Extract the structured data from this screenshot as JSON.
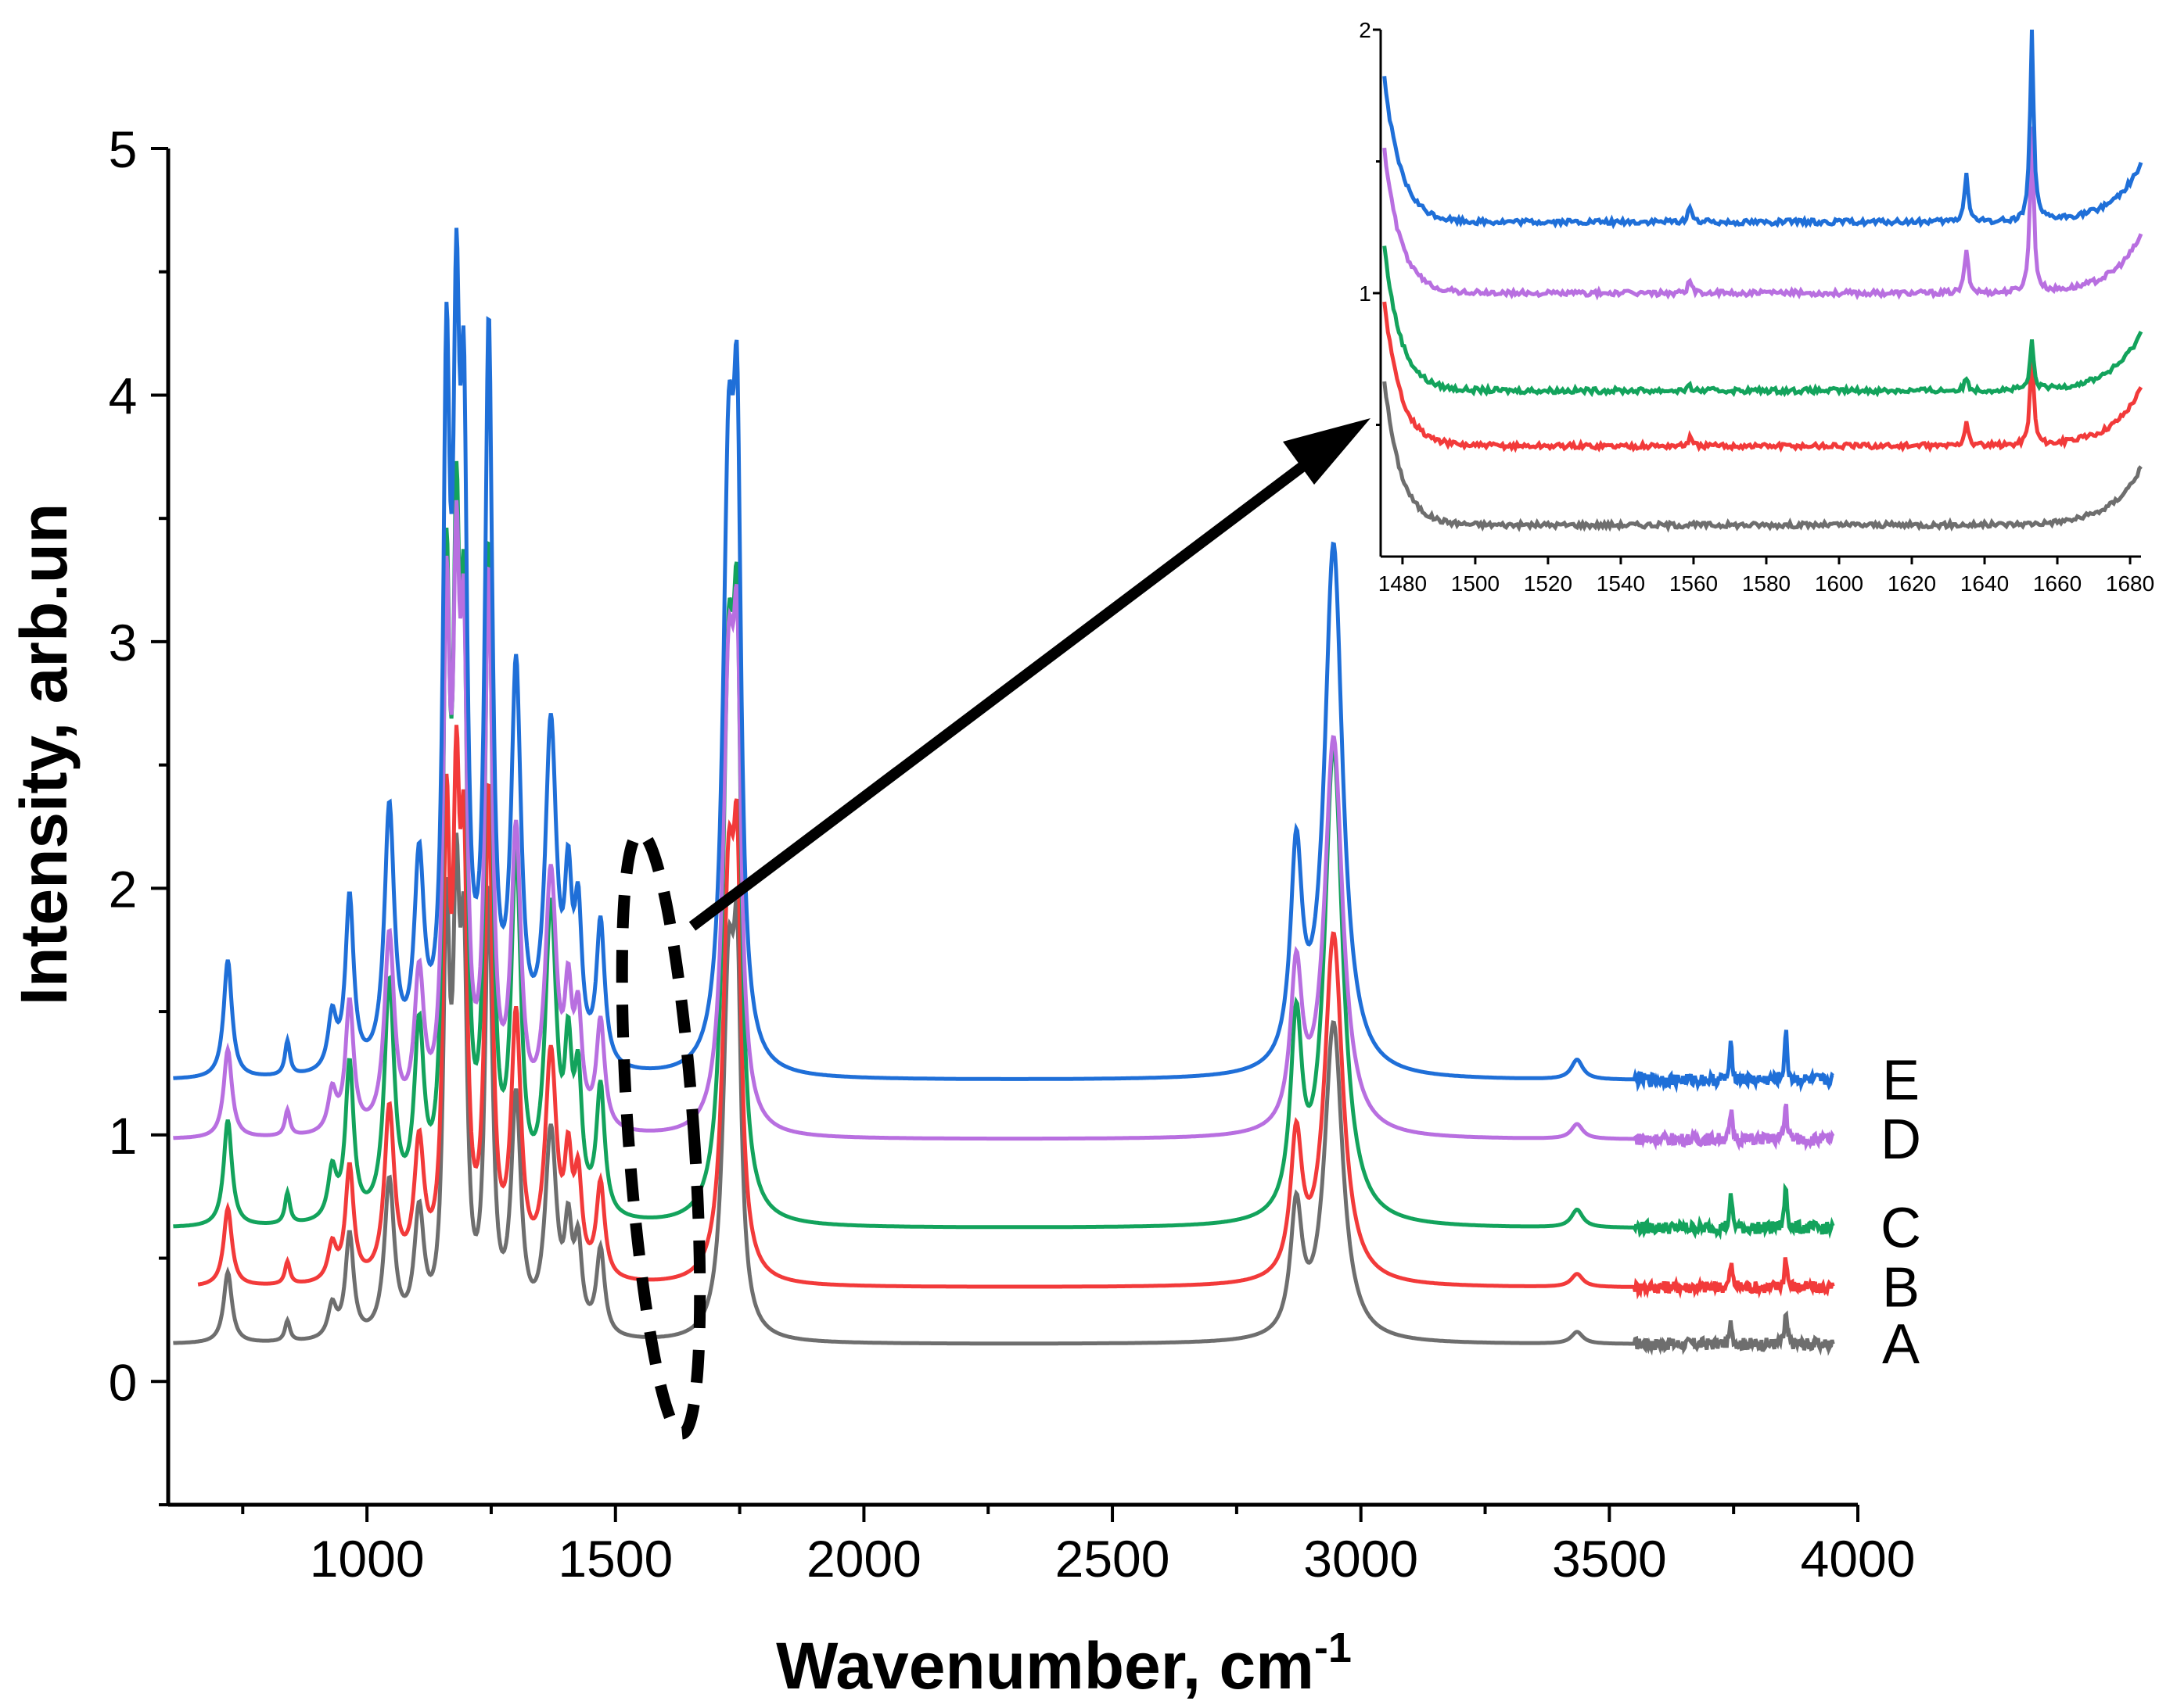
{
  "chart_data": [
    {
      "type": "line",
      "id": "main",
      "title": "",
      "xlabel": "Wavenumber, cm",
      "xlabel_superscript": "-1",
      "ylabel": "Intensity, arb.un",
      "xlim": [
        600,
        4000
      ],
      "ylim": [
        -0.5,
        5
      ],
      "xticks": [
        1000,
        1500,
        2000,
        2500,
        3000,
        3500,
        4000
      ],
      "xtick_labels": [
        "1000",
        "1500",
        "2000",
        "2500",
        "3000",
        "3500",
        "4000"
      ],
      "yticks": [
        0,
        1,
        2,
        3,
        4,
        5
      ],
      "ytick_labels": [
        "0",
        "1",
        "2",
        "3",
        "4",
        "5"
      ],
      "series": [
        {
          "name": "A",
          "color": "#6e6e6e",
          "offset": 0.15,
          "scale": 0.6
        },
        {
          "name": "B",
          "color": "#f23a3a",
          "offset": 0.38,
          "scale": 0.66
        },
        {
          "name": "C",
          "color": "#13a35c",
          "offset": 0.62,
          "scale": 0.9
        },
        {
          "name": "D",
          "color": "#b86fe0",
          "offset": 0.98,
          "scale": 0.75
        },
        {
          "name": "E",
          "color": "#1f6fd8",
          "offset": 1.22,
          "scale": 1.0
        }
      ],
      "peaks": [
        {
          "x": 720,
          "h": 0.48,
          "w": 10
        },
        {
          "x": 840,
          "h": 0.14,
          "w": 6
        },
        {
          "x": 930,
          "h": 0.22,
          "w": 10
        },
        {
          "x": 965,
          "h": 0.7,
          "w": 10
        },
        {
          "x": 1045,
          "h": 1.05,
          "w": 12
        },
        {
          "x": 1105,
          "h": 0.8,
          "w": 12
        },
        {
          "x": 1160,
          "h": 2.6,
          "w": 8
        },
        {
          "x": 1180,
          "h": 2.5,
          "w": 8
        },
        {
          "x": 1195,
          "h": 2.2,
          "w": 8
        },
        {
          "x": 1245,
          "h": 2.9,
          "w": 9
        },
        {
          "x": 1300,
          "h": 1.55,
          "w": 12
        },
        {
          "x": 1370,
          "h": 1.35,
          "w": 14
        },
        {
          "x": 1405,
          "h": 0.62,
          "w": 9
        },
        {
          "x": 1425,
          "h": 0.55,
          "w": 9
        },
        {
          "x": 1470,
          "h": 0.58,
          "w": 10
        },
        {
          "x": 1728,
          "h": 2.35,
          "w": 14
        },
        {
          "x": 1745,
          "h": 2.0,
          "w": 9
        },
        {
          "x": 2870,
          "h": 0.85,
          "w": 14
        },
        {
          "x": 2945,
          "h": 2.15,
          "w": 22
        },
        {
          "x": 3435,
          "h": 0.08,
          "w": 14
        },
        {
          "x": 3745,
          "h": 0.15,
          "w": 3
        },
        {
          "x": 3855,
          "h": 0.2,
          "w": 3
        }
      ],
      "curve_labels": [
        "A",
        "B",
        "C",
        "D",
        "E"
      ]
    },
    {
      "type": "line",
      "id": "inset",
      "title": "",
      "xlim": [
        1474,
        1683
      ],
      "ylim": [
        0,
        2
      ],
      "xticks": [
        1480,
        1500,
        1520,
        1540,
        1560,
        1580,
        1600,
        1620,
        1640,
        1660,
        1680
      ],
      "xtick_labels": [
        "1480",
        "1500",
        "1520",
        "1540",
        "1560",
        "1580",
        "1600",
        "1620",
        "1640",
        "1660",
        "1680"
      ],
      "yticks": [
        1,
        2
      ],
      "ytick_labels": [
        "1",
        "2"
      ],
      "series": [
        {
          "name": "A",
          "color": "#6e6e6e",
          "base": 0.12
        },
        {
          "name": "B",
          "color": "#f23a3a",
          "base": 0.42
        },
        {
          "name": "C",
          "color": "#13a35c",
          "base": 0.63
        },
        {
          "name": "D",
          "color": "#b86fe0",
          "base": 1.0
        },
        {
          "name": "E",
          "color": "#1f6fd8",
          "base": 1.27
        }
      ],
      "spikes": [
        {
          "x": 1559,
          "h": 0.04
        },
        {
          "x": 1635,
          "h": 0.12
        },
        {
          "x": 1653,
          "h": 0.45
        }
      ]
    }
  ]
}
